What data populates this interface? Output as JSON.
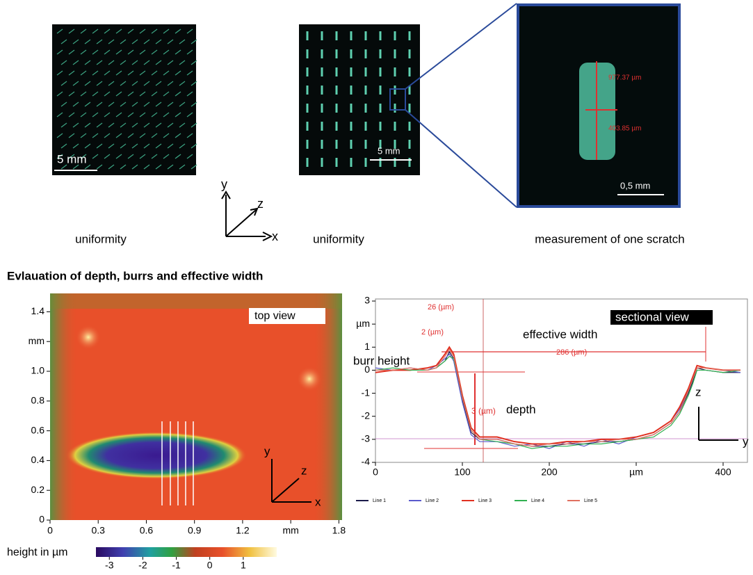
{
  "top_row": {
    "panels": [
      {
        "scale_bar": "5 mm",
        "caption": "uniformity"
      },
      {
        "scale_bar": "5 mm",
        "caption": "uniformity"
      },
      {
        "scale_bar": "0,5 mm",
        "caption": "measurement of one scratch",
        "measurements": [
          "977.37 µm",
          "403.85 µm"
        ]
      }
    ],
    "axes": [
      "y",
      "z",
      "x"
    ]
  },
  "section_title": "Evlauation of depth, burrs and effective width",
  "heatmap": {
    "xlim": [
      0,
      1.82
    ],
    "xticks": [
      0,
      0.3,
      0.6,
      0.9,
      1.2,
      {
        "value": 1.5,
        "label": "mm"
      },
      1.8
    ],
    "ylim": [
      0,
      1.5
    ],
    "yticks": [
      0,
      0.2,
      0.4,
      0.6,
      0.8,
      {
        "value": 1,
        "label": "1.0"
      },
      {
        "value": 1.2,
        "label": "mm"
      },
      1.4
    ],
    "label": "top view",
    "axes": [
      "y",
      "z",
      "x"
    ],
    "colorbar": {
      "label": "height in µm",
      "lim": [
        -3.4,
        2
      ],
      "ticks": [
        -3,
        -2,
        -1,
        0,
        1
      ]
    }
  },
  "chart_data": {
    "type": "line",
    "xlim": [
      0,
      428
    ],
    "xticks": [
      0,
      100,
      200,
      {
        "value": 300,
        "label": "µm"
      },
      400
    ],
    "ylim": [
      -4,
      3
    ],
    "yticks": [
      -4,
      -3,
      -2,
      -1,
      0,
      1,
      {
        "value": 2,
        "label": "µm"
      },
      3
    ],
    "x": [
      0,
      20,
      40,
      60,
      70,
      80,
      85,
      90,
      95,
      100,
      110,
      120,
      140,
      160,
      180,
      200,
      220,
      240,
      260,
      280,
      300,
      320,
      340,
      350,
      360,
      365,
      370,
      380,
      400,
      420
    ],
    "series": [
      {
        "name": "Line 1",
        "color": "#1a1a4a",
        "values": [
          0,
          0,
          0,
          0,
          0.1,
          0.4,
          0.8,
          0.5,
          -0.4,
          -1.3,
          -2.7,
          -3.0,
          -3.0,
          -3.2,
          -3.3,
          -3.3,
          -3.2,
          -3.2,
          -3.1,
          -3.1,
          -3.0,
          -2.8,
          -2.3,
          -1.8,
          -1.0,
          -0.5,
          0.1,
          0,
          -0.1,
          -0.1
        ]
      },
      {
        "name": "Line 2",
        "color": "#5a5acc",
        "values": [
          0.1,
          0,
          0.1,
          0,
          0.2,
          0.5,
          0.7,
          0.4,
          -0.5,
          -1.4,
          -2.8,
          -3.1,
          -3.1,
          -3.3,
          -3.2,
          -3.4,
          -3.1,
          -3.3,
          -3.0,
          -3.2,
          -2.9,
          -2.7,
          -2.2,
          -1.7,
          -0.9,
          -0.4,
          0.2,
          0.1,
          0,
          -0.1
        ]
      },
      {
        "name": "Line 3",
        "color": "#e03020",
        "values": [
          -0.1,
          0,
          0,
          0.1,
          0.2,
          0.7,
          1.0,
          0.7,
          -0.2,
          -1.1,
          -2.5,
          -2.9,
          -2.9,
          -3.1,
          -3.2,
          -3.2,
          -3.1,
          -3.1,
          -3.0,
          -3.0,
          -2.9,
          -2.7,
          -2.2,
          -1.6,
          -0.8,
          -0.3,
          0.2,
          0.1,
          0,
          0
        ]
      },
      {
        "name": "Line 4",
        "color": "#30b050",
        "values": [
          0,
          0.1,
          0,
          0,
          0.1,
          0.4,
          0.6,
          0.5,
          -0.3,
          -1.2,
          -2.6,
          -3.0,
          -3.1,
          -3.2,
          -3.4,
          -3.3,
          -3.3,
          -3.2,
          -3.2,
          -3.1,
          -3.0,
          -2.9,
          -2.4,
          -1.9,
          -1.1,
          -0.6,
          0,
          0,
          -0.1,
          0
        ]
      },
      {
        "name": "Line 5",
        "color": "#e07060",
        "values": [
          0,
          0,
          0.1,
          0,
          0.1,
          0.6,
          0.9,
          0.6,
          -0.3,
          -1.2,
          -2.6,
          -3.0,
          -3.0,
          -3.2,
          -3.3,
          -3.2,
          -3.2,
          -3.1,
          -3.1,
          -3.0,
          -3.0,
          -2.8,
          -2.3,
          -1.8,
          -0.9,
          -0.4,
          0.1,
          0.1,
          0,
          0
        ]
      }
    ],
    "annotations": [
      "26 (µm)",
      "2 (µm)",
      "burr height",
      "effective width",
      "286 (µm)",
      "3 (µm)",
      "depth",
      "sectional view"
    ],
    "axes": [
      "z",
      "y"
    ]
  }
}
